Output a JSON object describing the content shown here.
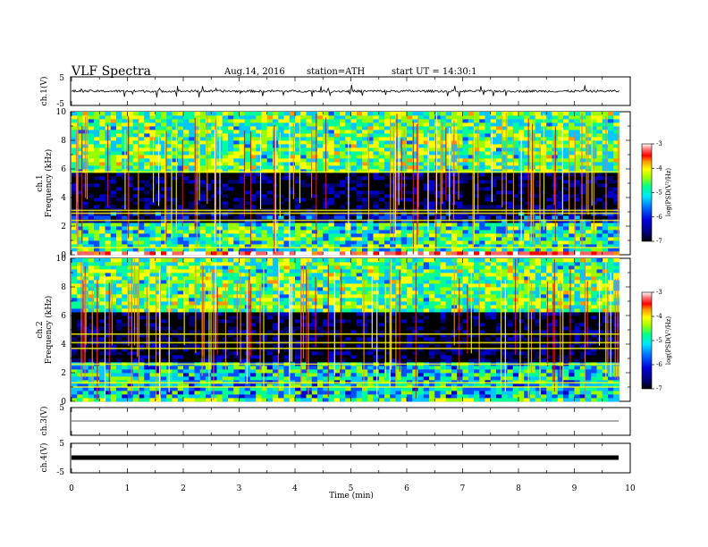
{
  "header": {
    "title": "VLF  Spectra",
    "date": "Aug.14, 2016",
    "station": "station=ATH",
    "start": "start  UT  =   14:30:1"
  },
  "colors": {
    "colormap": [
      "#000000",
      "#00006e",
      "#0000c8",
      "#0050ff",
      "#00c8ff",
      "#00ff96",
      "#96ff00",
      "#ffff00",
      "#ff9600",
      "#ff0000",
      "#ff6464",
      "#ffffff"
    ],
    "trace": "#000000"
  },
  "chart_data": [
    {
      "type": "line",
      "panel": "ch1-waveform",
      "ylabel": "ch.1(V)",
      "ylim": [
        -5,
        5
      ],
      "yticks": [
        "5",
        "-5"
      ],
      "xlim": [
        0,
        10
      ],
      "description_values": {
        "baseline_v": 0.0,
        "noise_v": 0.4,
        "spike_v": 1.5
      }
    },
    {
      "type": "heatmap",
      "panel": "ch1-spectrogram",
      "ylabel_channel": "ch.1",
      "ylabel": "Frequency  (kHz)",
      "ylim": [
        0,
        10
      ],
      "yticks": [
        "0",
        "2",
        "4",
        "6",
        "8",
        "10"
      ],
      "xlim": [
        0,
        9.8
      ],
      "colorbar": {
        "label": "log(PSD(V²/Hz)",
        "range": [
          -7,
          -3
        ],
        "ticks": [
          "-3",
          "-4",
          "-5",
          "-6",
          "-7"
        ]
      },
      "band_levels": [
        {
          "from_khz": 0.0,
          "to_khz": 0.3,
          "log_psd": -3.5
        },
        {
          "from_khz": 0.3,
          "to_khz": 2.2,
          "log_psd": -5.2
        },
        {
          "from_khz": 2.2,
          "to_khz": 3.0,
          "log_psd": -6.3
        },
        {
          "from_khz": 3.0,
          "to_khz": 5.8,
          "log_psd": -6.8
        },
        {
          "from_khz": 5.8,
          "to_khz": 10.0,
          "log_psd": -5.0
        }
      ],
      "line_freqs_khz": [
        0.5,
        2.4,
        2.9,
        3.1,
        5.8
      ],
      "time_step_min": 0.005
    },
    {
      "type": "heatmap",
      "panel": "ch2-spectrogram",
      "ylabel_channel": "ch.2",
      "ylabel": "Frequency  (kHz)",
      "ylim": [
        0,
        10
      ],
      "yticks": [
        "0",
        "2",
        "4",
        "6",
        "8",
        "10"
      ],
      "xlim": [
        0,
        9.8
      ],
      "colorbar": {
        "label": "log(PSD(V²/Hz)",
        "range": [
          -7,
          -3
        ],
        "ticks": [
          "-3",
          "-4",
          "-5",
          "-6",
          "-7"
        ]
      },
      "band_levels": [
        {
          "from_khz": 0.0,
          "to_khz": 0.3,
          "log_psd": -5.0
        },
        {
          "from_khz": 0.3,
          "to_khz": 2.8,
          "log_psd": -5.4
        },
        {
          "from_khz": 2.8,
          "to_khz": 6.3,
          "log_psd": -6.8
        },
        {
          "from_khz": 6.3,
          "to_khz": 10.0,
          "log_psd": -5.0
        }
      ],
      "line_freqs_khz": [
        1.0,
        1.3,
        2.6,
        3.7,
        4.1,
        4.7
      ],
      "time_step_min": 0.005
    },
    {
      "type": "line",
      "panel": "ch3-waveform",
      "ylabel": "ch.3(V)",
      "ylim": [
        -5,
        5
      ],
      "yticks": [
        "5"
      ],
      "xlim": [
        0,
        10
      ],
      "constant_v": 0.0
    },
    {
      "type": "line",
      "panel": "ch4-waveform",
      "ylabel": "ch.4(V)",
      "ylim": [
        -5,
        5
      ],
      "yticks": [
        "5",
        "-5"
      ],
      "xlim": [
        0,
        10
      ],
      "constant_v": 0.0,
      "xlabel": "Time  (min)",
      "xticks": [
        "0",
        "1",
        "2",
        "3",
        "4",
        "5",
        "6",
        "7",
        "8",
        "9",
        "10"
      ]
    }
  ]
}
